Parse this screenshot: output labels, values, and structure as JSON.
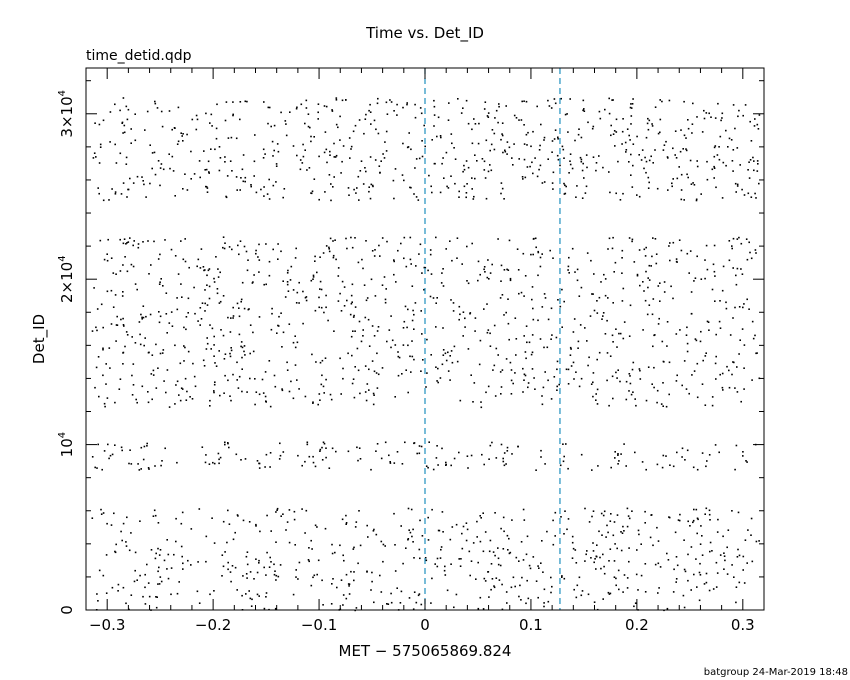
{
  "colors": {
    "background": "#ffffff",
    "axes": "#000000",
    "points": "#000000",
    "reference_lines": "#1f8fbf"
  },
  "footer": "batgroup 24-Mar-2019 18:48",
  "chart_data": {
    "type": "scatter",
    "title": "Time vs. Det_ID",
    "subtitle": "time_detid.qdp",
    "xlabel": "MET − 575065869.824",
    "ylabel": "Det_ID",
    "xlim": [
      -0.32,
      0.32
    ],
    "ylim": [
      0,
      32768
    ],
    "grid": false,
    "x_ticks": [
      {
        "value": -0.3,
        "label": "−0.3"
      },
      {
        "value": -0.2,
        "label": "−0.2"
      },
      {
        "value": -0.1,
        "label": "−0.1"
      },
      {
        "value": 0,
        "label": "0"
      },
      {
        "value": 0.1,
        "label": "0.1"
      },
      {
        "value": 0.2,
        "label": "0.2"
      },
      {
        "value": 0.3,
        "label": "0.3"
      }
    ],
    "y_ticks": [
      {
        "value": 0,
        "mantissa": "0",
        "exponent": ""
      },
      {
        "value": 10000,
        "mantissa": "10",
        "exponent": "4"
      },
      {
        "value": 20000,
        "mantissa": "2×10",
        "exponent": "4"
      },
      {
        "value": 30000,
        "mantissa": "3×10",
        "exponent": "4"
      }
    ],
    "vertical_lines": [
      {
        "x": 0,
        "style": "dashed"
      },
      {
        "x": 0.1274,
        "style": "dashed"
      }
    ],
    "point_bands": [
      {
        "ymin": 0,
        "ymax": 6200,
        "count": 620
      },
      {
        "ymin": 8500,
        "ymax": 10200,
        "count": 190
      },
      {
        "ymin": 12300,
        "ymax": 22600,
        "count": 1050
      },
      {
        "ymin": 24800,
        "ymax": 31000,
        "count": 720
      }
    ]
  }
}
